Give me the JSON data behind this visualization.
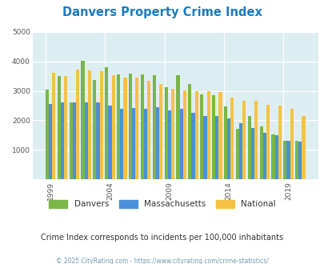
{
  "title": "Danvers Property Crime Index",
  "years": [
    1999,
    2000,
    2001,
    2002,
    2003,
    2004,
    2005,
    2006,
    2007,
    2008,
    2009,
    2010,
    2011,
    2012,
    2013,
    2014,
    2015,
    2016,
    2017,
    2018,
    2019,
    2020
  ],
  "danvers": [
    3030,
    3500,
    2600,
    4020,
    3370,
    3800,
    3560,
    3580,
    3560,
    3530,
    3120,
    3540,
    3220,
    2870,
    2840,
    2480,
    1720,
    2160,
    1810,
    1520,
    1310,
    1310
  ],
  "massachusetts": [
    2560,
    2600,
    2620,
    2620,
    2600,
    2510,
    2380,
    2420,
    2400,
    2450,
    2330,
    2380,
    2250,
    2160,
    2150,
    2080,
    1910,
    1750,
    1580,
    1500,
    1300,
    1270
  ],
  "national": [
    3610,
    3500,
    3720,
    3680,
    3660,
    3520,
    3460,
    3460,
    3350,
    3230,
    3060,
    3010,
    2980,
    2980,
    2960,
    2780,
    2670,
    2660,
    2540,
    2490,
    2390,
    2140
  ],
  "danvers_color": "#7ab648",
  "massachusetts_color": "#4a90d9",
  "national_color": "#f5c242",
  "bg_color": "#ddeef3",
  "ylim": [
    0,
    5000
  ],
  "yticks": [
    0,
    1000,
    2000,
    3000,
    4000,
    5000
  ],
  "xtick_years": [
    1999,
    2004,
    2009,
    2014,
    2019
  ],
  "subtitle": "Crime Index corresponds to incidents per 100,000 inhabitants",
  "footer": "© 2025 CityRating.com - https://www.cityrating.com/crime-statistics/",
  "title_color": "#1a7bbf",
  "subtitle_color": "#333333",
  "footer_color": "#7799aa",
  "legend_labels": [
    "Danvers",
    "Massachusetts",
    "National"
  ]
}
